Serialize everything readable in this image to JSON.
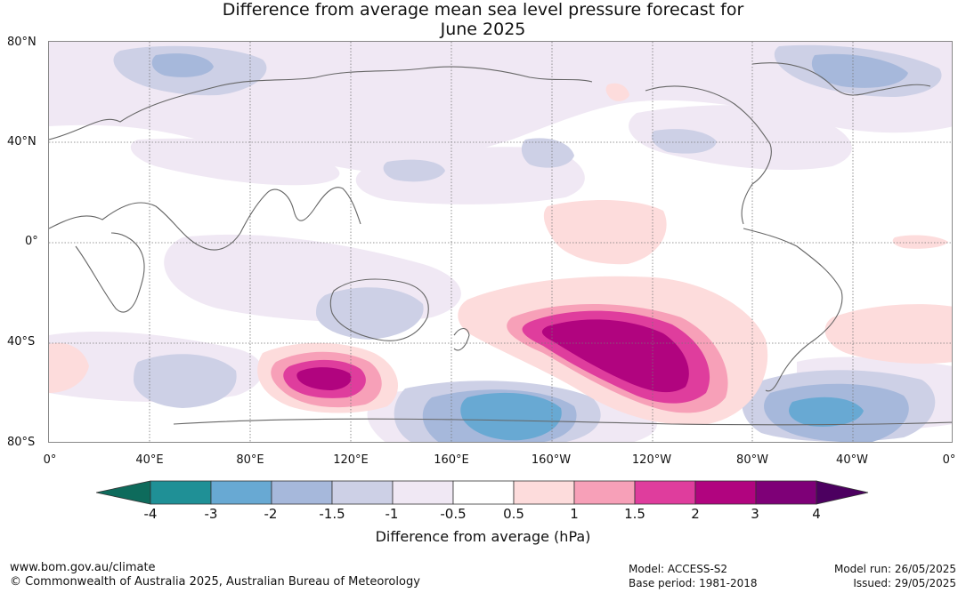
{
  "title": {
    "line1": "Difference from average mean sea level pressure forecast for",
    "line2": "June 2025"
  },
  "axes": {
    "lat_labels": [
      "80°N",
      "40°N",
      "0°",
      "40°S",
      "80°S"
    ],
    "lon_labels": [
      "0°",
      "40°E",
      "80°E",
      "120°E",
      "160°E",
      "160°W",
      "120°W",
      "80°W",
      "40°W",
      "0°"
    ]
  },
  "legend": {
    "tick_labels": [
      "-4",
      "-3",
      "-2",
      "-1.5",
      "-1",
      "-0.5",
      "0.5",
      "1",
      "1.5",
      "2",
      "3",
      "4"
    ],
    "title": "Difference from average (hPa)",
    "colors": [
      "#0e6b5c",
      "#1f9096",
      "#68a9d3",
      "#a6b8db",
      "#cdd0e6",
      "#f0e8f4",
      "#ffffff",
      "#fddcdc",
      "#f7a0b8",
      "#df3d9d",
      "#b1047f",
      "#7e0077",
      "#4c0060"
    ]
  },
  "footer": {
    "url": "www.bom.gov.au/climate",
    "copyright": "© Commonwealth of Australia 2025, Australian Bureau of Meteorology",
    "model": "Model: ACCESS-S2",
    "base_period": "Base period: 1981-2018",
    "model_run": "Model run: 26/05/2025",
    "issued": "Issued: 29/05/2025"
  },
  "colors": {
    "lowest": "#0e6b5c",
    "strong_positive": "#b1047f",
    "weak_positive": "#fddcdc",
    "weak_negative": "#cdd0e6"
  }
}
